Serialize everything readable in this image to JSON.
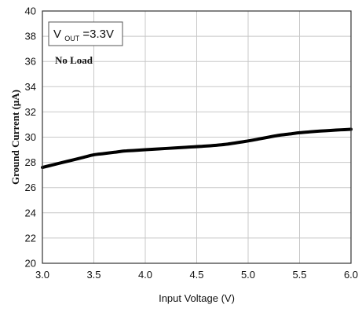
{
  "chart_data": {
    "type": "line",
    "title": "",
    "xlabel": "Input Voltage (V)",
    "ylabel": "Ground Current (μA)",
    "xlim": [
      3.0,
      6.0
    ],
    "ylim": [
      20,
      40
    ],
    "x_ticks": [
      "3.0",
      "3.5",
      "4.0",
      "4.5",
      "5.0",
      "5.5",
      "6.0"
    ],
    "y_ticks": [
      "20",
      "22",
      "24",
      "26",
      "28",
      "30",
      "32",
      "34",
      "36",
      "38",
      "40"
    ],
    "grid": true,
    "annotations": {
      "vout_prefix": "V",
      "vout_sub": "OUT",
      "vout_value": "=3.3V",
      "load": "No Load"
    },
    "series": [
      {
        "x": [
          3.0,
          3.1,
          3.2,
          3.3,
          3.4,
          3.5,
          3.6,
          3.7,
          3.8,
          3.9,
          4.0,
          4.2,
          4.4,
          4.6,
          4.8,
          5.0,
          5.1,
          5.2,
          5.3,
          5.4,
          5.5,
          5.6,
          5.7,
          5.8,
          5.9,
          6.0
        ],
        "values": [
          27.6,
          27.8,
          28.0,
          28.2,
          28.4,
          28.6,
          28.7,
          28.8,
          28.9,
          28.95,
          29.0,
          29.1,
          29.2,
          29.3,
          29.45,
          29.7,
          29.85,
          30.0,
          30.15,
          30.25,
          30.35,
          30.42,
          30.48,
          30.53,
          30.58,
          30.62
        ]
      }
    ],
    "colors": {
      "line": "#000000",
      "grid": "#c8c8c8",
      "frame": "#333333"
    }
  }
}
